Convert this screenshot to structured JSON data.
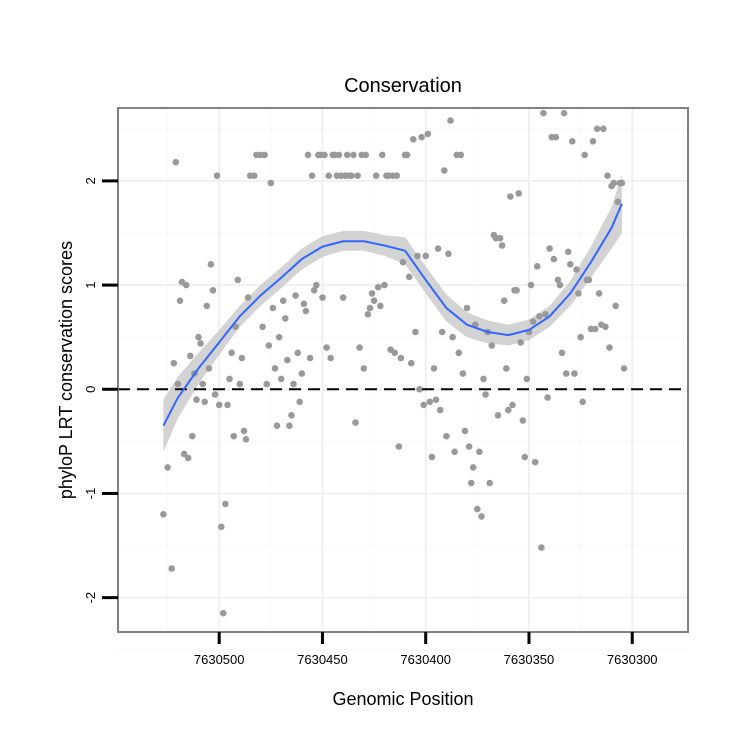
{
  "chart_data": {
    "type": "scatter",
    "title": "Conservation",
    "xlabel": "Genomic Position",
    "ylabel": "phyloP LRT conservation scores",
    "x_reversed": true,
    "xlim": [
      7630549,
      7630273
    ],
    "ylim": [
      -2.33,
      2.7
    ],
    "x_ticks": [
      7630500,
      7630450,
      7630400,
      7630350,
      7630300
    ],
    "y_ticks": [
      -2,
      -1,
      0,
      1,
      2
    ],
    "reference_line": {
      "y": 0,
      "style": "dashed"
    },
    "grid": true,
    "point_color": "#999999",
    "smooth_color": "#3366ff",
    "band_color": "#c8c8c8",
    "points": [
      [
        7630527,
        -1.2
      ],
      [
        7630525,
        -0.75
      ],
      [
        7630523,
        -1.72
      ],
      [
        7630522,
        0.25
      ],
      [
        7630521,
        2.18
      ],
      [
        7630520,
        0.05
      ],
      [
        7630519,
        0.85
      ],
      [
        7630518,
        1.03
      ],
      [
        7630517,
        -0.62
      ],
      [
        7630516,
        1.0
      ],
      [
        7630515,
        -0.66
      ],
      [
        7630514,
        0.32
      ],
      [
        7630513,
        -0.45
      ],
      [
        7630512,
        0.15
      ],
      [
        7630511,
        -0.1
      ],
      [
        7630510,
        0.5
      ],
      [
        7630509,
        0.44
      ],
      [
        7630508,
        0.05
      ],
      [
        7630507,
        -0.12
      ],
      [
        7630506,
        0.8
      ],
      [
        7630505,
        0.2
      ],
      [
        7630504,
        1.2
      ],
      [
        7630503,
        0.95
      ],
      [
        7630502,
        -0.05
      ],
      [
        7630501,
        2.05
      ],
      [
        7630500,
        -0.15
      ],
      [
        7630499,
        -1.32
      ],
      [
        7630498,
        -2.15
      ],
      [
        7630497,
        -1.1
      ],
      [
        7630496,
        -0.15
      ],
      [
        7630495,
        0.1
      ],
      [
        7630494,
        0.35
      ],
      [
        7630493,
        -0.45
      ],
      [
        7630492,
        0.6
      ],
      [
        7630491,
        1.05
      ],
      [
        7630490,
        0.05
      ],
      [
        7630489,
        0.3
      ],
      [
        7630488,
        -0.4
      ],
      [
        7630487,
        -0.48
      ],
      [
        7630486,
        0.88
      ],
      [
        7630485,
        2.05
      ],
      [
        7630483,
        2.05
      ],
      [
        7630482,
        2.25
      ],
      [
        7630480,
        2.25
      ],
      [
        7630479,
        0.6
      ],
      [
        7630478,
        2.25
      ],
      [
        7630477,
        0.05
      ],
      [
        7630476,
        0.42
      ],
      [
        7630475,
        1.98
      ],
      [
        7630474,
        0.78
      ],
      [
        7630473,
        0.2
      ],
      [
        7630472,
        -0.35
      ],
      [
        7630471,
        0.5
      ],
      [
        7630470,
        0.1
      ],
      [
        7630469,
        0.85
      ],
      [
        7630468,
        0.68
      ],
      [
        7630467,
        0.28
      ],
      [
        7630466,
        -0.35
      ],
      [
        7630465,
        -0.25
      ],
      [
        7630464,
        0.05
      ],
      [
        7630463,
        0.9
      ],
      [
        7630462,
        0.35
      ],
      [
        7630461,
        -0.12
      ],
      [
        7630460,
        0.15
      ],
      [
        7630459,
        0.82
      ],
      [
        7630458,
        0.75
      ],
      [
        7630457,
        2.25
      ],
      [
        7630456,
        0.3
      ],
      [
        7630455,
        2.05
      ],
      [
        7630454,
        0.95
      ],
      [
        7630453,
        1.0
      ],
      [
        7630452,
        2.25
      ],
      [
        7630451,
        2.25
      ],
      [
        7630450,
        0.88
      ],
      [
        7630449,
        2.25
      ],
      [
        7630448,
        0.4
      ],
      [
        7630447,
        2.05
      ],
      [
        7630446,
        0.3
      ],
      [
        7630445,
        2.25
      ],
      [
        7630444,
        2.25
      ],
      [
        7630443,
        2.05
      ],
      [
        7630442,
        2.25
      ],
      [
        7630441,
        2.05
      ],
      [
        7630440,
        0.88
      ],
      [
        7630439,
        2.05
      ],
      [
        7630438,
        2.25
      ],
      [
        7630437,
        2.05
      ],
      [
        7630436,
        2.05
      ],
      [
        7630435,
        2.25
      ],
      [
        7630434,
        -0.32
      ],
      [
        7630433,
        2.05
      ],
      [
        7630432,
        0.4
      ],
      [
        7630431,
        2.25
      ],
      [
        7630430,
        0.2
      ],
      [
        7630429,
        2.25
      ],
      [
        7630428,
        0.72
      ],
      [
        7630427,
        0.78
      ],
      [
        7630426,
        0.92
      ],
      [
        7630425,
        0.85
      ],
      [
        7630424,
        2.05
      ],
      [
        7630423,
        0.98
      ],
      [
        7630422,
        0.8
      ],
      [
        7630421,
        2.25
      ],
      [
        7630420,
        1.0
      ],
      [
        7630419,
        2.05
      ],
      [
        7630418,
        2.05
      ],
      [
        7630417,
        0.38
      ],
      [
        7630416,
        2.05
      ],
      [
        7630415,
        0.35
      ],
      [
        7630414,
        2.05
      ],
      [
        7630413,
        -0.55
      ],
      [
        7630412,
        0.3
      ],
      [
        7630411,
        1.22
      ],
      [
        7630410,
        2.25
      ],
      [
        7630409,
        2.25
      ],
      [
        7630408,
        1.08
      ],
      [
        7630407,
        0.25
      ],
      [
        7630406,
        2.4
      ],
      [
        7630405,
        0.55
      ],
      [
        7630404,
        1.28
      ],
      [
        7630403,
        0.0
      ],
      [
        7630402,
        2.42
      ],
      [
        7630401,
        -0.15
      ],
      [
        7630400,
        1.28
      ],
      [
        7630399,
        2.45
      ],
      [
        7630398,
        -0.12
      ],
      [
        7630397,
        -0.65
      ],
      [
        7630396,
        0.2
      ],
      [
        7630395,
        -0.1
      ],
      [
        7630394,
        1.35
      ],
      [
        7630393,
        -0.2
      ],
      [
        7630392,
        0.55
      ],
      [
        7630391,
        2.1
      ],
      [
        7630390,
        -0.45
      ],
      [
        7630389,
        1.3
      ],
      [
        7630388,
        2.58
      ],
      [
        7630387,
        0.5
      ],
      [
        7630386,
        -0.6
      ],
      [
        7630385,
        2.25
      ],
      [
        7630384,
        0.35
      ],
      [
        7630383,
        2.25
      ],
      [
        7630382,
        0.15
      ],
      [
        7630381,
        -0.4
      ],
      [
        7630380,
        0.78
      ],
      [
        7630379,
        -0.55
      ],
      [
        7630378,
        -0.9
      ],
      [
        7630377,
        -0.75
      ],
      [
        7630376,
        0.62
      ],
      [
        7630375,
        -1.15
      ],
      [
        7630374,
        -0.6
      ],
      [
        7630373,
        -1.22
      ],
      [
        7630372,
        0.1
      ],
      [
        7630371,
        -0.05
      ],
      [
        7630370,
        0.55
      ],
      [
        7630369,
        -0.9
      ],
      [
        7630368,
        0.42
      ],
      [
        7630367,
        1.48
      ],
      [
        7630366,
        1.45
      ],
      [
        7630365,
        -0.25
      ],
      [
        7630364,
        1.45
      ],
      [
        7630363,
        1.38
      ],
      [
        7630362,
        0.85
      ],
      [
        7630361,
        0.2
      ],
      [
        7630360,
        -0.2
      ],
      [
        7630359,
        1.85
      ],
      [
        7630358,
        -0.15
      ],
      [
        7630357,
        0.95
      ],
      [
        7630356,
        0.95
      ],
      [
        7630355,
        1.88
      ],
      [
        7630354,
        0.45
      ],
      [
        7630353,
        -0.3
      ],
      [
        7630352,
        -0.65
      ],
      [
        7630351,
        0.1
      ],
      [
        7630350,
        0.55
      ],
      [
        7630349,
        1.0
      ],
      [
        7630348,
        0.65
      ],
      [
        7630347,
        -0.7
      ],
      [
        7630346,
        1.18
      ],
      [
        7630345,
        0.7
      ],
      [
        7630344,
        -1.52
      ],
      [
        7630343,
        2.65
      ],
      [
        7630342,
        0.72
      ],
      [
        7630341,
        -0.08
      ],
      [
        7630340,
        1.35
      ],
      [
        7630339,
        2.42
      ],
      [
        7630338,
        1.25
      ],
      [
        7630337,
        2.42
      ],
      [
        7630336,
        1.05
      ],
      [
        7630335,
        1.0
      ],
      [
        7630334,
        0.35
      ],
      [
        7630333,
        2.65
      ],
      [
        7630332,
        0.15
      ],
      [
        7630331,
        1.32
      ],
      [
        7630330,
        1.2
      ],
      [
        7630329,
        2.38
      ],
      [
        7630328,
        0.15
      ],
      [
        7630327,
        1.15
      ],
      [
        7630326,
        0.92
      ],
      [
        7630325,
        0.5
      ],
      [
        7630324,
        -0.12
      ],
      [
        7630323,
        2.25
      ],
      [
        7630322,
        1.05
      ],
      [
        7630321,
        1.05
      ],
      [
        7630320,
        0.58
      ],
      [
        7630319,
        2.38
      ],
      [
        7630318,
        0.58
      ],
      [
        7630317,
        2.5
      ],
      [
        7630316,
        0.92
      ],
      [
        7630315,
        0.62
      ],
      [
        7630314,
        2.5
      ],
      [
        7630313,
        0.6
      ],
      [
        7630312,
        2.05
      ],
      [
        7630311,
        0.4
      ],
      [
        7630310,
        1.95
      ],
      [
        7630309,
        1.98
      ],
      [
        7630308,
        0.8
      ],
      [
        7630307,
        1.8
      ],
      [
        7630306,
        1.98
      ],
      [
        7630305,
        1.98
      ],
      [
        7630304,
        0.2
      ]
    ],
    "smooth": [
      [
        7630527,
        -0.35
      ],
      [
        7630520,
        -0.08
      ],
      [
        7630510,
        0.2
      ],
      [
        7630500,
        0.45
      ],
      [
        7630490,
        0.7
      ],
      [
        7630480,
        0.9
      ],
      [
        7630470,
        1.07
      ],
      [
        7630460,
        1.25
      ],
      [
        7630450,
        1.37
      ],
      [
        7630440,
        1.42
      ],
      [
        7630430,
        1.42
      ],
      [
        7630420,
        1.38
      ],
      [
        7630410,
        1.33
      ],
      [
        7630400,
        1.05
      ],
      [
        7630390,
        0.78
      ],
      [
        7630380,
        0.62
      ],
      [
        7630370,
        0.55
      ],
      [
        7630360,
        0.52
      ],
      [
        7630350,
        0.57
      ],
      [
        7630340,
        0.7
      ],
      [
        7630330,
        0.92
      ],
      [
        7630320,
        1.22
      ],
      [
        7630310,
        1.55
      ],
      [
        7630305,
        1.78
      ]
    ],
    "band_lower": [
      [
        7630527,
        -0.6
      ],
      [
        7630520,
        -0.28
      ],
      [
        7630510,
        0.05
      ],
      [
        7630500,
        0.33
      ],
      [
        7630490,
        0.6
      ],
      [
        7630480,
        0.8
      ],
      [
        7630470,
        0.97
      ],
      [
        7630460,
        1.15
      ],
      [
        7630450,
        1.27
      ],
      [
        7630440,
        1.33
      ],
      [
        7630430,
        1.33
      ],
      [
        7630420,
        1.28
      ],
      [
        7630410,
        1.2
      ],
      [
        7630400,
        0.92
      ],
      [
        7630390,
        0.65
      ],
      [
        7630380,
        0.5
      ],
      [
        7630370,
        0.44
      ],
      [
        7630360,
        0.42
      ],
      [
        7630350,
        0.47
      ],
      [
        7630340,
        0.6
      ],
      [
        7630330,
        0.8
      ],
      [
        7630320,
        1.07
      ],
      [
        7630310,
        1.35
      ],
      [
        7630305,
        1.5
      ]
    ],
    "band_upper": [
      [
        7630527,
        -0.1
      ],
      [
        7630520,
        0.12
      ],
      [
        7630510,
        0.35
      ],
      [
        7630500,
        0.57
      ],
      [
        7630490,
        0.8
      ],
      [
        7630480,
        1.0
      ],
      [
        7630470,
        1.17
      ],
      [
        7630460,
        1.35
      ],
      [
        7630450,
        1.47
      ],
      [
        7630440,
        1.52
      ],
      [
        7630430,
        1.52
      ],
      [
        7630420,
        1.48
      ],
      [
        7630410,
        1.46
      ],
      [
        7630400,
        1.18
      ],
      [
        7630390,
        0.91
      ],
      [
        7630380,
        0.74
      ],
      [
        7630370,
        0.66
      ],
      [
        7630360,
        0.62
      ],
      [
        7630350,
        0.67
      ],
      [
        7630340,
        0.8
      ],
      [
        7630330,
        1.04
      ],
      [
        7630320,
        1.37
      ],
      [
        7630310,
        1.75
      ],
      [
        7630305,
        2.06
      ]
    ]
  }
}
